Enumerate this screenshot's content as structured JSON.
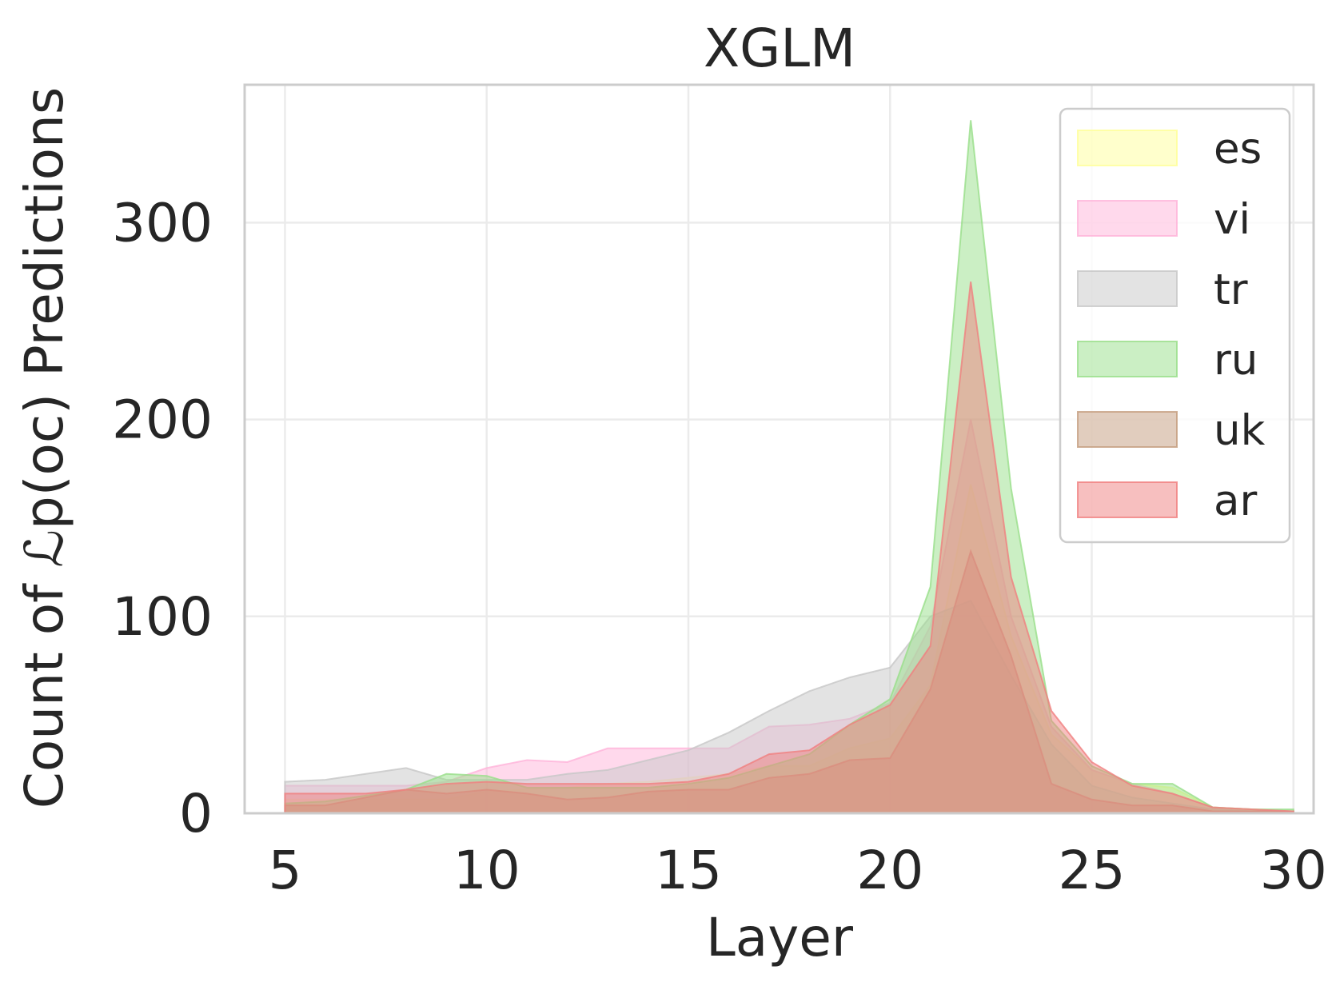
{
  "chart_data": {
    "type": "area",
    "title": "XGLM",
    "xlabel": "Layer",
    "ylabel": "Count of ℒp(oc) Predictions",
    "xlim": [
      4,
      30.5
    ],
    "ylim": [
      0,
      370
    ],
    "xticks": [
      5,
      10,
      15,
      20,
      25,
      30
    ],
    "yticks": [
      0,
      100,
      200,
      300
    ],
    "grid": true,
    "legend_position": "top-right",
    "x": [
      5,
      6,
      7,
      8,
      9,
      10,
      11,
      12,
      13,
      14,
      15,
      16,
      17,
      18,
      19,
      20,
      21,
      22,
      23,
      24,
      25,
      26,
      27,
      28,
      29,
      30
    ],
    "series": [
      {
        "name": "es",
        "color": "#ffff99",
        "values": [
          7,
          7,
          7,
          7,
          7,
          11,
          12,
          13,
          15,
          16,
          18,
          20,
          24,
          24,
          33,
          38,
          65,
          167,
          90,
          40,
          22,
          15,
          13,
          3,
          2,
          1
        ]
      },
      {
        "name": "vi",
        "color": "#ffb3da",
        "values": [
          14,
          14,
          14,
          14,
          16,
          23,
          27,
          26,
          33,
          33,
          33,
          33,
          44,
          45,
          48,
          56,
          95,
          200,
          100,
          44,
          22,
          15,
          10,
          3,
          2,
          1
        ]
      },
      {
        "name": "tr",
        "color": "#c7c7c7",
        "values": [
          16,
          17,
          20,
          23,
          17,
          17,
          17,
          20,
          22,
          27,
          32,
          41,
          52,
          62,
          69,
          74,
          100,
          108,
          70,
          35,
          14,
          8,
          5,
          2,
          1,
          1
        ]
      },
      {
        "name": "ru",
        "color": "#98df8a",
        "values": [
          5,
          6,
          9,
          12,
          20,
          19,
          13,
          13,
          13,
          13,
          15,
          18,
          24,
          30,
          45,
          58,
          115,
          352,
          165,
          47,
          24,
          15,
          15,
          3,
          2,
          2
        ]
      },
      {
        "name": "uk",
        "color": "#c49c7d",
        "values": [
          4,
          4,
          8,
          12,
          10,
          12,
          10,
          7,
          8,
          11,
          12,
          12,
          18,
          20,
          27,
          28,
          63,
          133,
          80,
          15,
          7,
          4,
          4,
          1,
          1,
          1
        ]
      },
      {
        "name": "ar",
        "color": "#f08080",
        "values": [
          10,
          10,
          10,
          12,
          15,
          16,
          15,
          15,
          15,
          15,
          16,
          20,
          30,
          32,
          45,
          55,
          85,
          270,
          120,
          52,
          26,
          14,
          10,
          3,
          2,
          1
        ]
      }
    ]
  }
}
